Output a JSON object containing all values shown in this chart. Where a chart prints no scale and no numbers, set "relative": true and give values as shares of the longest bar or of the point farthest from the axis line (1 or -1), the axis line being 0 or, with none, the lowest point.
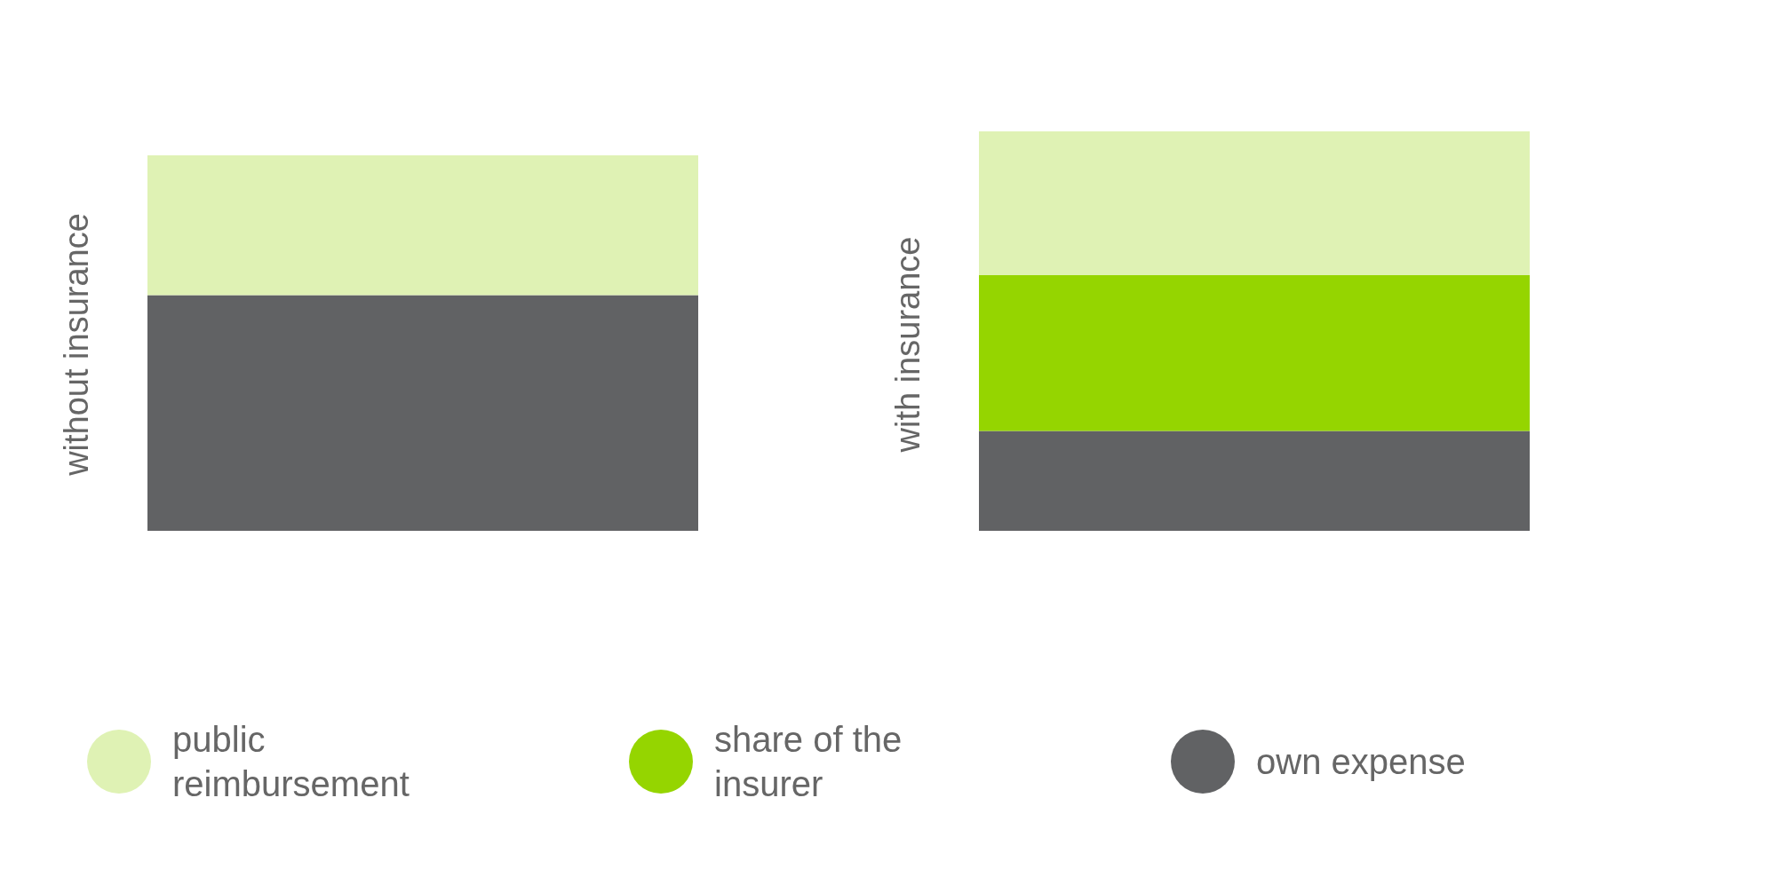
{
  "chart_data": {
    "type": "bar",
    "stacked": true,
    "relative": true,
    "categories": [
      "without insurance",
      "with insurance"
    ],
    "series": [
      {
        "name": "own expense",
        "color": "#616264",
        "values": [
          0.59,
          0.25
        ]
      },
      {
        "name": "share of the insurer",
        "color": "#95d500",
        "values": [
          null,
          0.39
        ]
      },
      {
        "name": "public reimbursement",
        "color": "#dff2b4",
        "values": [
          0.35,
          0.36
        ]
      }
    ],
    "legend": "bottom"
  }
}
